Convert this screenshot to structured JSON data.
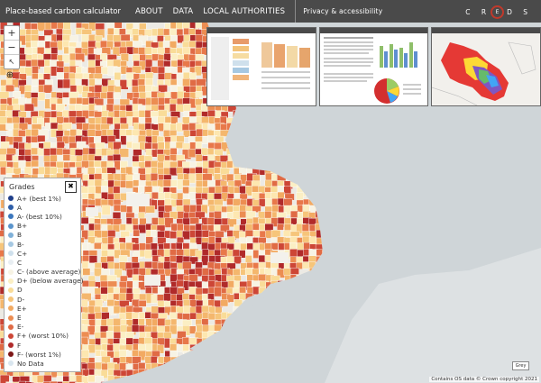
{
  "nav": {
    "brand": "Place-based carbon calculator",
    "links": [
      "ABOUT",
      "DATA",
      "LOCAL AUTHORITIES"
    ],
    "privacy": "Privacy & accessibility",
    "logo_left": "C R",
    "logo_mid": "E",
    "logo_right": "D S"
  },
  "map_controls": {
    "zoom_in": "+",
    "zoom_out": "−",
    "reset": "↖",
    "locate_icon": "crosshair-icon"
  },
  "legend": {
    "title": "Grades",
    "close": "✖",
    "items": [
      {
        "label": "A+ (best 1%)",
        "color": "#1f3f8a"
      },
      {
        "label": "A",
        "color": "#2e5ea8"
      },
      {
        "label": "A- (best 10%)",
        "color": "#3b77bd"
      },
      {
        "label": "B+",
        "color": "#5a94cc"
      },
      {
        "label": "B",
        "color": "#7fb0d8"
      },
      {
        "label": "B-",
        "color": "#a6c8e2"
      },
      {
        "label": "C+",
        "color": "#cfe0ec"
      },
      {
        "label": "C",
        "color": "#e8eef2"
      },
      {
        "label": "C- (above average)",
        "color": "#f7f3e4"
      },
      {
        "label": "D+ (below average)",
        "color": "#fbefc4"
      },
      {
        "label": "D",
        "color": "#f9dc98"
      },
      {
        "label": "D-",
        "color": "#f6c57a"
      },
      {
        "label": "E+",
        "color": "#f2aa62"
      },
      {
        "label": "E",
        "color": "#ec8d52"
      },
      {
        "label": "E-",
        "color": "#e06b45"
      },
      {
        "label": "F+ (worst 10%)",
        "color": "#cd4636"
      },
      {
        "label": "F",
        "color": "#b02a2a"
      },
      {
        "label": "F- (worst 1%)",
        "color": "#7d1616"
      },
      {
        "label": "No Data",
        "color": "#d9e6ef"
      }
    ]
  },
  "scale_button": "Grey",
  "attribution": "Contains OS data © Crown copyright 2021",
  "colors": {
    "sea": "#cfd5d8",
    "land": "#eceae4",
    "nav_bg": "#4a4a4a",
    "accent": "#c0392b"
  }
}
